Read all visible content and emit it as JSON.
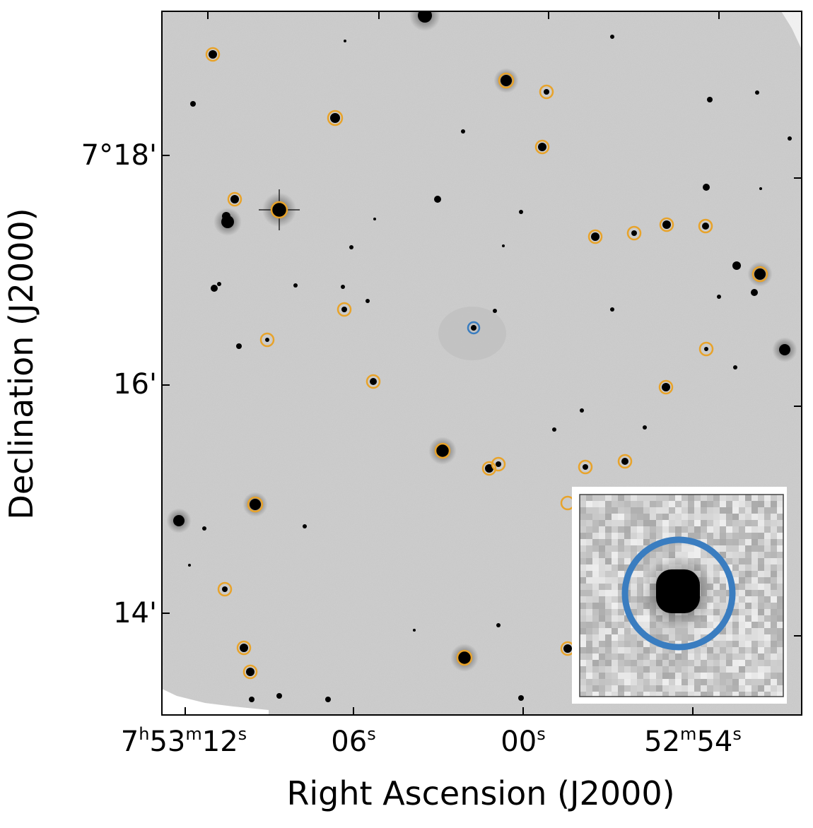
{
  "figure": {
    "xlabel": "Right Ascension (J2000)",
    "ylabel": "Declination (J2000)",
    "y_ticks": [
      {
        "label": "7°18'",
        "dec_arcmin": 18
      },
      {
        "label": "16'",
        "dec_arcmin": 16
      },
      {
        "label": "14'",
        "dec_arcmin": 14
      }
    ],
    "x_ticks": [
      {
        "h": "7",
        "m": "53",
        "s": "12",
        "ra_sec": 72
      },
      {
        "h": "",
        "m": "",
        "s": "06",
        "ra_sec": 66
      },
      {
        "h": "",
        "m": "",
        "s": "00",
        "ra_sec": 60
      },
      {
        "h": "",
        "m": "52",
        "s": "54",
        "ra_sec": 54
      }
    ],
    "colors": {
      "comparison_ring": "#e8a32a",
      "target_ring": "#3a7dc0",
      "sky": "#c9c9c9",
      "star": "#000000"
    }
  }
}
